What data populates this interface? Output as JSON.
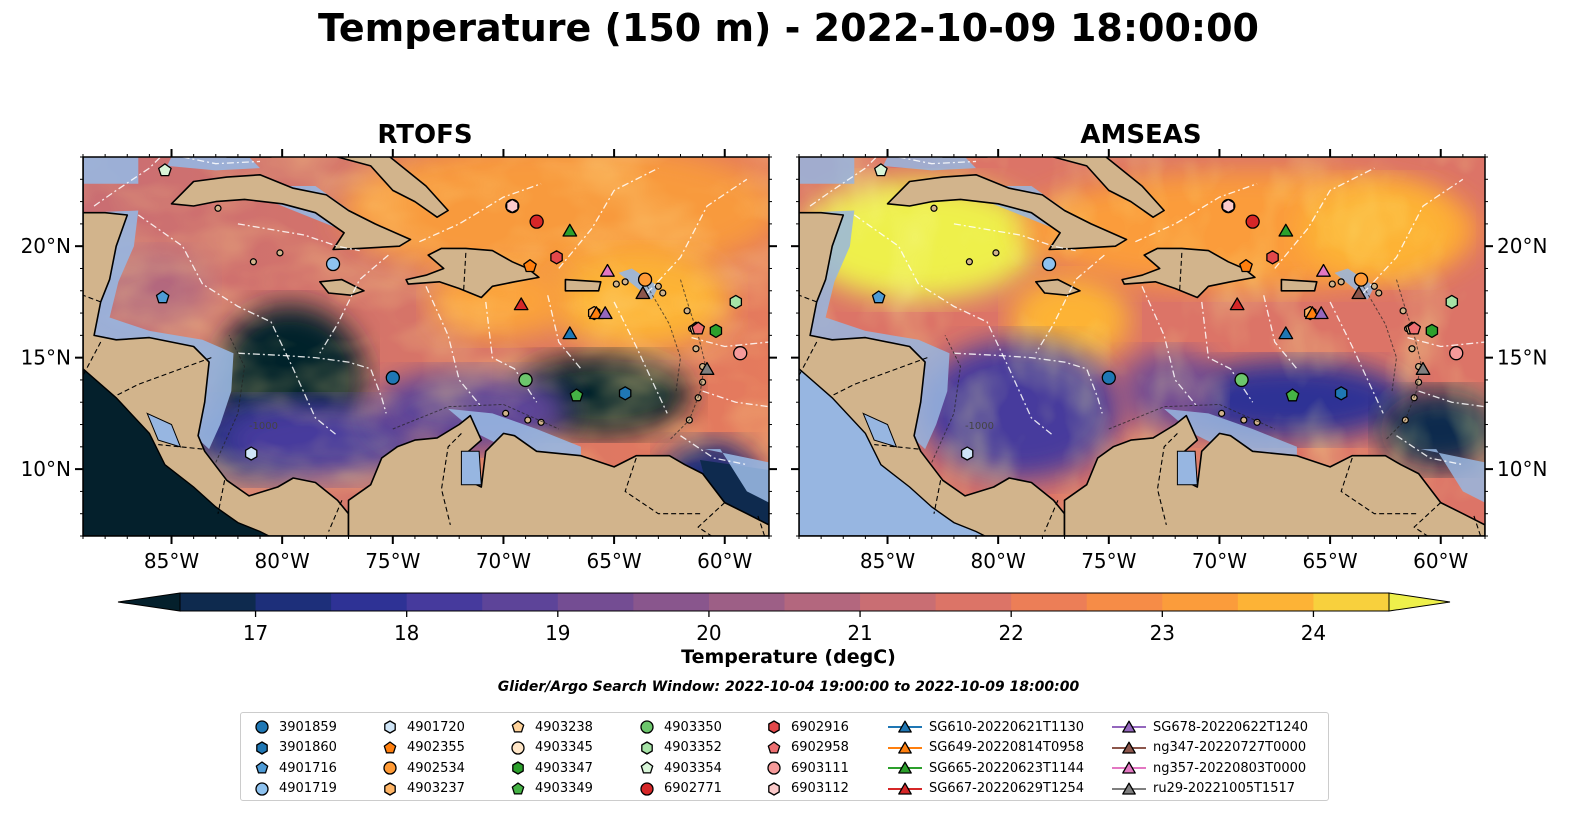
{
  "title": "Temperature (150 m) - 2022-10-09 18:00:00",
  "panels": [
    {
      "title": "RTOFS"
    },
    {
      "title": "AMSEAS"
    }
  ],
  "map": {
    "lon_range": [
      -89,
      -58
    ],
    "lat_range": [
      7,
      24
    ],
    "x_ticks": [
      "85°W",
      "80°W",
      "75°W",
      "70°W",
      "65°W",
      "60°W"
    ],
    "y_ticks": [
      "20°N",
      "15°N",
      "10°N"
    ],
    "land_color": "#d2b48c",
    "shallow_color": "#97b6e1",
    "depth_contour_labels": [
      "-100",
      "-1000"
    ]
  },
  "colorbar": {
    "label": "Temperature (degC)",
    "range": [
      16.5,
      24.5
    ],
    "ticks": [
      "17",
      "18",
      "19",
      "20",
      "21",
      "22",
      "23",
      "24"
    ],
    "colors": [
      "#04202c",
      "#0e2a4e",
      "#1d2f7a",
      "#2e3295",
      "#463a9d",
      "#5d4499",
      "#744d93",
      "#89568d",
      "#9d5f86",
      "#b3677e",
      "#c96e73",
      "#dc7467",
      "#ec7e57",
      "#f68c47",
      "#fb9c3b",
      "#fdb336",
      "#f8d03d",
      "#eef04b"
    ]
  },
  "search_window": "Glider/Argo Search Window: 2022-10-04 19:00:00 to 2022-10-09 18:00:00",
  "legend": [
    {
      "label": "3901859",
      "marker": "circle",
      "color": "#1f77b4"
    },
    {
      "label": "3901860",
      "marker": "hexagon",
      "color": "#1f77b4"
    },
    {
      "label": "4901716",
      "marker": "pentagon",
      "color": "#4e9bd6"
    },
    {
      "label": "4901719",
      "marker": "circle",
      "color": "#8ec2ef"
    },
    {
      "label": "4901720",
      "marker": "hexagon",
      "color": "#cfe5f7"
    },
    {
      "label": "4902355",
      "marker": "pentagon",
      "color": "#ff7f0e"
    },
    {
      "label": "4902534",
      "marker": "circle",
      "color": "#ff9a35"
    },
    {
      "label": "4903237",
      "marker": "hexagon",
      "color": "#ffb566"
    },
    {
      "label": "4903238",
      "marker": "pentagon",
      "color": "#ffd39b"
    },
    {
      "label": "4903345",
      "marker": "circle",
      "color": "#ffe6c7"
    },
    {
      "label": "4903347",
      "marker": "hexagon",
      "color": "#2ca02c"
    },
    {
      "label": "4903349",
      "marker": "pentagon",
      "color": "#45b345"
    },
    {
      "label": "4903350",
      "marker": "circle",
      "color": "#6cc66c"
    },
    {
      "label": "4903352",
      "marker": "hexagon",
      "color": "#a6e3a6"
    },
    {
      "label": "4903354",
      "marker": "pentagon",
      "color": "#d8f5d8"
    },
    {
      "label": "6902771",
      "marker": "circle",
      "color": "#d62728"
    },
    {
      "label": "6902916",
      "marker": "hexagon",
      "color": "#e3484a"
    },
    {
      "label": "6902958",
      "marker": "pentagon",
      "color": "#ee6f71"
    },
    {
      "label": "6903111",
      "marker": "circle",
      "color": "#f59a9a"
    },
    {
      "label": "6903112",
      "marker": "hexagon",
      "color": "#fbcaca"
    },
    {
      "label": "SG610-20220621T1130",
      "marker": "triangle",
      "color": "#1f77b4"
    },
    {
      "label": "SG649-20220814T0958",
      "marker": "triangle",
      "color": "#ff7f0e"
    },
    {
      "label": "SG665-20220623T1144",
      "marker": "triangle",
      "color": "#2ca02c"
    },
    {
      "label": "SG667-20220629T1254",
      "marker": "triangle",
      "color": "#d62728"
    },
    {
      "label": "SG678-20220622T1240",
      "marker": "triangle",
      "color": "#9467bd"
    },
    {
      "label": "ng347-20220727T0000",
      "marker": "triangle",
      "color": "#8c564b"
    },
    {
      "label": "ng357-20220803T0000",
      "marker": "triangle",
      "color": "#e377c2"
    },
    {
      "label": "ru29-20221005T1517",
      "marker": "triangle",
      "color": "#7f7f7f"
    }
  ],
  "positions": [
    {
      "id": "3901859",
      "lon": -75.0,
      "lat": 14.1
    },
    {
      "id": "3901860",
      "lon": -64.5,
      "lat": 13.4
    },
    {
      "id": "4901716",
      "lon": -85.4,
      "lat": 17.7
    },
    {
      "id": "4901719",
      "lon": -77.7,
      "lat": 19.2
    },
    {
      "id": "4901720",
      "lon": -81.4,
      "lat": 10.7
    },
    {
      "id": "4902355",
      "lon": -68.8,
      "lat": 19.1
    },
    {
      "id": "4902534",
      "lon": -63.6,
      "lat": 18.5
    },
    {
      "id": "4903237",
      "lon": -65.9,
      "lat": 17.0
    },
    {
      "id": "4903238",
      "lon": -61.3,
      "lat": 16.3
    },
    {
      "id": "4903345",
      "lon": -69.6,
      "lat": 21.8
    },
    {
      "id": "4903347",
      "lon": -60.4,
      "lat": 16.2
    },
    {
      "id": "4903349",
      "lon": -66.7,
      "lat": 13.3
    },
    {
      "id": "4903350",
      "lon": -69.0,
      "lat": 14.0
    },
    {
      "id": "4903352",
      "lon": -59.5,
      "lat": 17.5
    },
    {
      "id": "4903354",
      "lon": -85.3,
      "lat": 23.4
    },
    {
      "id": "6902771",
      "lon": -68.5,
      "lat": 21.1
    },
    {
      "id": "6902916",
      "lon": -67.6,
      "lat": 19.5
    },
    {
      "id": "6902958",
      "lon": -61.2,
      "lat": 16.3
    },
    {
      "id": "6903111",
      "lon": -59.3,
      "lat": 15.2
    },
    {
      "id": "6903112",
      "lon": -69.6,
      "lat": 21.8
    },
    {
      "id": "SG610-20220621T1130",
      "lon": -67.0,
      "lat": 16.1
    },
    {
      "id": "SG649-20220814T0958",
      "lon": -65.8,
      "lat": 17.0
    },
    {
      "id": "SG665-20220623T1144",
      "lon": -67.0,
      "lat": 20.7
    },
    {
      "id": "SG667-20220629T1254",
      "lon": -69.2,
      "lat": 17.4
    },
    {
      "id": "SG678-20220622T1240",
      "lon": -65.4,
      "lat": 17.0
    },
    {
      "id": "ng347-20220727T0000",
      "lon": -63.7,
      "lat": 17.9
    },
    {
      "id": "ng357-20220803T0000",
      "lon": -65.3,
      "lat": 18.9
    },
    {
      "id": "ru29-20221005T1517",
      "lon": -60.8,
      "lat": 14.5
    }
  ]
}
